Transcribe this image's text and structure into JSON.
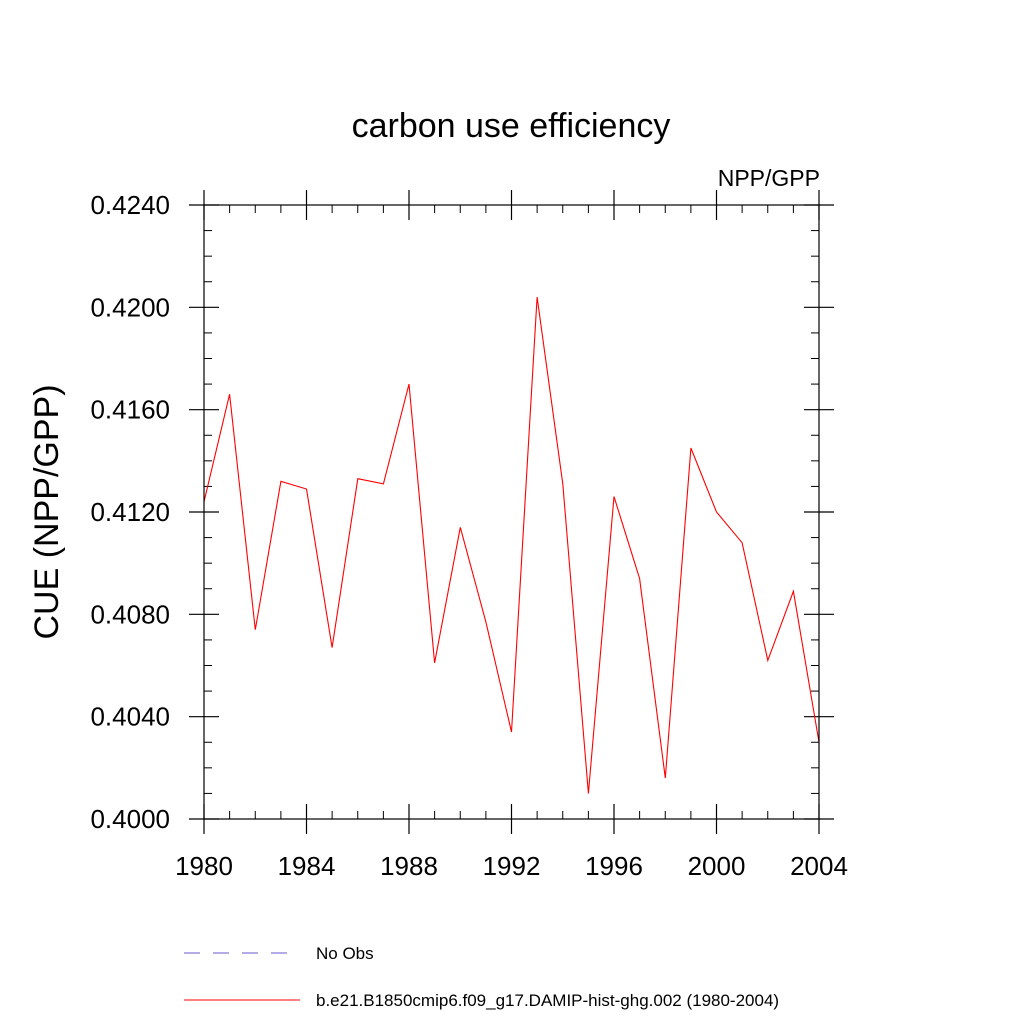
{
  "chart_data": {
    "type": "line",
    "title": "carbon use efficiency",
    "subtitle": "NPP/GPP",
    "ylabel": "CUE  (NPP/GPP)",
    "xlabel": "",
    "xlim": [
      1980,
      2004
    ],
    "ylim": [
      0.4,
      0.424
    ],
    "x_ticks": [
      1980,
      1984,
      1988,
      1992,
      1996,
      2000,
      2004
    ],
    "x_tick_labels": [
      "1980",
      "1984",
      "1988",
      "1992",
      "1996",
      "2000",
      "2004"
    ],
    "y_ticks": [
      0.4,
      0.404,
      0.408,
      0.412,
      0.416,
      0.42,
      0.424
    ],
    "y_tick_labels": [
      "0.4000",
      "0.4040",
      "0.4080",
      "0.4120",
      "0.4160",
      "0.4200",
      "0.4240"
    ],
    "x_minor_step": 1,
    "y_minor_step": 0.001,
    "grid": false,
    "legend_position": "bottom",
    "series": [
      {
        "name": "b.e21.B1850cmip6.f09_g17.DAMIP-hist-ghg.002 (1980-2004)",
        "color": "#ff0000",
        "style": "solid",
        "x": [
          1980,
          1981,
          1982,
          1983,
          1984,
          1985,
          1986,
          1987,
          1988,
          1989,
          1990,
          1991,
          1992,
          1993,
          1994,
          1995,
          1996,
          1997,
          1998,
          1999,
          2000,
          2001,
          2002,
          2003,
          2004
        ],
        "values": [
          0.4124,
          0.4166,
          0.4074,
          0.4132,
          0.4129,
          0.4067,
          0.4133,
          0.4131,
          0.417,
          0.4061,
          0.4114,
          0.4077,
          0.4034,
          0.4204,
          0.4131,
          0.401,
          0.4126,
          0.4094,
          0.4016,
          0.4145,
          0.412,
          0.4108,
          0.4062,
          0.4089,
          0.403
        ]
      }
    ],
    "legend": [
      {
        "label": "No Obs",
        "color": "#6a5acd",
        "style": "dashed"
      },
      {
        "label": "b.e21.B1850cmip6.f09_g17.DAMIP-hist-ghg.002 (1980-2004)",
        "color": "#ff0000",
        "style": "solid"
      }
    ]
  }
}
